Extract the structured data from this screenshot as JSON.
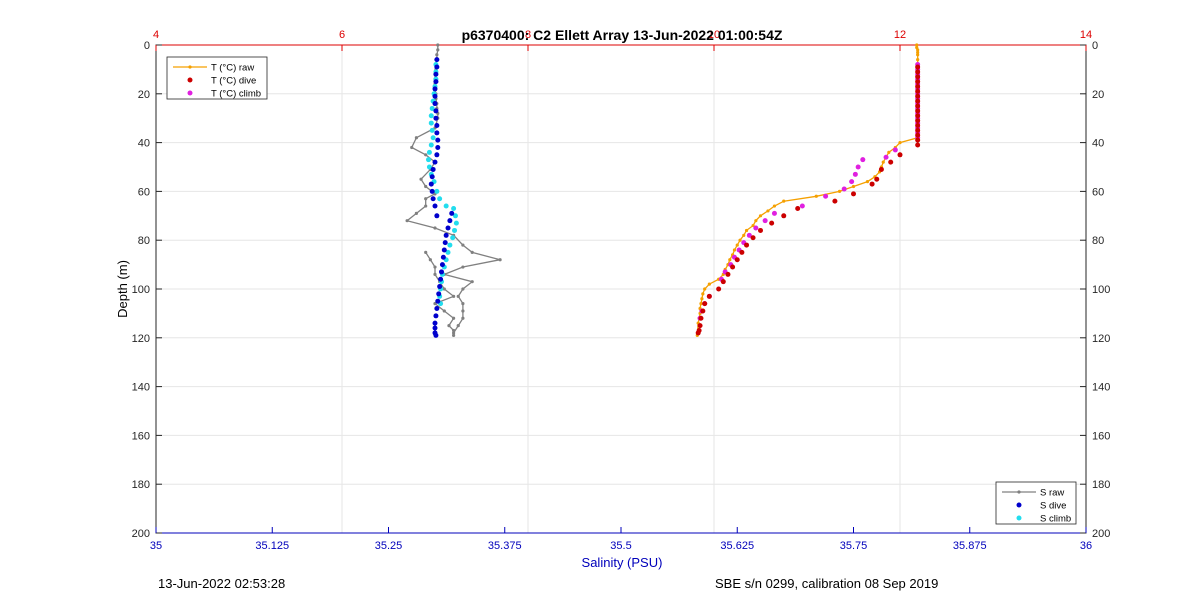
{
  "chart_data": {
    "type": "line",
    "title": "p6370400: C2 Ellett Array 13-Jun-2022 01:00:54Z",
    "ylabel": "Depth (m)",
    "xlabel_bottom": "Salinity (PSU)",
    "xlim_bottom": [
      35,
      36
    ],
    "xticks_bottom": [
      "35",
      "35.125",
      "35.25",
      "35.375",
      "35.5",
      "35.625",
      "35.75",
      "35.875",
      "36"
    ],
    "xlim_top": [
      4,
      14
    ],
    "xticks_top": [
      "4",
      "6",
      "8",
      "10",
      "12",
      "14"
    ],
    "ylim": [
      0,
      200
    ],
    "yticks": [
      "0",
      "20",
      "40",
      "60",
      "80",
      "100",
      "120",
      "140",
      "160",
      "180",
      "200"
    ],
    "y_reversed": true,
    "grid": true,
    "legends": [
      {
        "placement": "top-left",
        "entries": [
          "T (°C) raw",
          "T (°C) dive",
          "T (°C) climb"
        ]
      },
      {
        "placement": "bottom-right",
        "entries": [
          "S raw",
          "S dive",
          "S climb"
        ]
      }
    ],
    "colors": {
      "t_raw": "#f5a000",
      "t_dive": "#cc0000",
      "t_climb": "#e020e0",
      "s_raw": "#808080",
      "s_dive": "#0000cc",
      "s_climb": "#22ddee",
      "top_axis": "#dd0000",
      "bottom_axis": "#0000bb"
    },
    "series": [
      {
        "name": "T (°C) raw",
        "axis": "top",
        "style": "line-marker",
        "x": [
          12.18,
          12.18,
          12.19,
          12.19,
          12.19,
          12.19,
          12.19,
          12.19,
          12.19,
          12.19,
          12.19,
          12.19,
          12.19,
          12.19,
          12.19,
          12.19,
          12.19,
          12.19,
          12.19,
          12.19,
          12.19,
          12.19,
          12.0,
          11.95,
          11.88,
          11.85,
          11.82,
          11.8,
          11.78,
          11.73,
          11.65,
          11.5,
          11.35,
          11.1,
          10.75,
          10.65,
          10.58,
          10.5,
          10.45,
          10.42,
          10.35,
          10.32,
          10.28,
          10.25,
          10.22,
          10.2,
          10.17,
          10.15,
          10.12,
          10.1,
          10.05,
          9.95,
          9.9,
          9.88,
          9.87,
          9.86,
          9.85,
          9.85,
          9.84,
          9.83,
          9.82
        ],
        "y": [
          0,
          1,
          2,
          3,
          4,
          6,
          8,
          10,
          12,
          14,
          16,
          18,
          20,
          22,
          24,
          26,
          28,
          30,
          32,
          34,
          36,
          38,
          40,
          42,
          44,
          46,
          48,
          50,
          52,
          54,
          56,
          58,
          60,
          62,
          64,
          66,
          68,
          70,
          72,
          74,
          76,
          78,
          80,
          82,
          84,
          86,
          88,
          90,
          92,
          94,
          96,
          98,
          100,
          102,
          104,
          106,
          108,
          110,
          112,
          114,
          119
        ]
      },
      {
        "name": "T (°C) dive",
        "axis": "top",
        "style": "marker",
        "x": [
          12.19,
          12.19,
          12.19,
          12.19,
          12.19,
          12.19,
          12.19,
          12.19,
          12.19,
          12.19,
          12.19,
          12.19,
          12.19,
          12.19,
          12.19,
          12.19,
          12.19,
          12.0,
          11.9,
          11.8,
          11.75,
          11.7,
          11.5,
          11.3,
          10.9,
          10.75,
          10.62,
          10.5,
          10.42,
          10.35,
          10.3,
          10.25,
          10.2,
          10.15,
          10.1,
          10.05,
          9.95,
          9.9,
          9.88,
          9.86,
          9.85,
          9.84,
          9.83
        ],
        "y": [
          9,
          11,
          13,
          15,
          17,
          19,
          21,
          23,
          25,
          27,
          29,
          31,
          33,
          35,
          37,
          39,
          41,
          45,
          48,
          51,
          55,
          57,
          61,
          64,
          67,
          70,
          73,
          76,
          79,
          82,
          85,
          88,
          91,
          94,
          97,
          100,
          103,
          106,
          109,
          112,
          115,
          117,
          118
        ]
      },
      {
        "name": "T (°C) climb",
        "axis": "top",
        "style": "marker",
        "x": [
          12.19,
          12.19,
          12.19,
          12.19,
          12.19,
          12.19,
          12.19,
          12.19,
          12.19,
          12.19,
          12.19,
          12.19,
          12.19,
          12.19,
          12.19,
          12.19,
          11.95,
          11.85,
          11.6,
          11.55,
          11.52,
          11.48,
          11.4,
          11.2,
          10.95,
          10.65,
          10.55,
          10.45,
          10.38,
          10.32,
          10.27,
          10.22,
          10.18,
          10.12,
          10.08,
          9.95,
          9.9,
          9.87,
          9.85
        ],
        "y": [
          8,
          10,
          12,
          14,
          16,
          18,
          20,
          22,
          24,
          26,
          28,
          30,
          32,
          34,
          36,
          38,
          43,
          46,
          47,
          50,
          53,
          56,
          59,
          62,
          66,
          69,
          72,
          75,
          78,
          81,
          84,
          87,
          90,
          93,
          96,
          103,
          106,
          109,
          112
        ]
      },
      {
        "name": "S raw",
        "axis": "bottom",
        "style": "line-marker",
        "x": [
          35.303,
          35.303,
          35.302,
          35.302,
          35.301,
          35.301,
          35.3,
          35.3,
          35.3,
          35.3,
          35.301,
          35.301,
          35.302,
          35.302,
          35.303,
          35.303,
          35.3,
          35.28,
          35.275,
          35.29,
          35.3,
          35.295,
          35.285,
          35.29,
          35.3,
          35.29,
          35.29,
          35.28,
          35.27,
          35.3,
          35.32,
          35.33,
          35.34,
          35.37,
          35.33,
          35.31,
          35.34,
          35.33,
          35.325,
          35.33,
          35.33,
          35.33,
          35.325,
          35.32,
          35.32,
          35.32,
          35.315,
          35.32,
          35.31,
          35.3,
          35.32,
          35.31,
          35.305,
          35.3,
          35.3,
          35.295,
          35.29
        ],
        "y": [
          0,
          2,
          4,
          6,
          8,
          10,
          12,
          14,
          16,
          18,
          20,
          22,
          24,
          26,
          28,
          30,
          34,
          38,
          42,
          45,
          48,
          51,
          55,
          58,
          61,
          63,
          66,
          69,
          72,
          75,
          78,
          82,
          85,
          88,
          91,
          94,
          97,
          100,
          103,
          106,
          109,
          112,
          115,
          118,
          119,
          117,
          115,
          112,
          109,
          106,
          103,
          100,
          97,
          94,
          91,
          88,
          85
        ]
      },
      {
        "name": "S dive",
        "axis": "bottom",
        "style": "marker",
        "x": [
          35.302,
          35.302,
          35.301,
          35.301,
          35.3,
          35.3,
          35.3,
          35.301,
          35.301,
          35.302,
          35.302,
          35.303,
          35.303,
          35.302,
          35.3,
          35.298,
          35.297,
          35.296,
          35.297,
          35.298,
          35.3,
          35.302,
          35.318,
          35.316,
          35.314,
          35.312,
          35.311,
          35.31,
          35.309,
          35.308,
          35.307,
          35.306,
          35.305,
          35.304,
          35.303,
          35.302,
          35.301,
          35.3,
          35.3,
          35.3,
          35.301
        ],
        "y": [
          6,
          9,
          12,
          15,
          18,
          21,
          24,
          27,
          30,
          33,
          36,
          39,
          42,
          45,
          48,
          51,
          54,
          57,
          60,
          63,
          66,
          70,
          69,
          72,
          75,
          78,
          81,
          84,
          87,
          90,
          93,
          96,
          99,
          102,
          105,
          108,
          111,
          114,
          116,
          118,
          119
        ]
      },
      {
        "name": "S climb",
        "axis": "bottom",
        "style": "marker",
        "x": [
          35.301,
          35.301,
          35.301,
          35.3,
          35.299,
          35.298,
          35.297,
          35.296,
          35.296,
          35.297,
          35.298,
          35.296,
          35.294,
          35.293,
          35.294,
          35.296,
          35.299,
          35.302,
          35.305,
          35.312,
          35.32,
          35.322,
          35.323,
          35.321,
          35.319,
          35.316,
          35.314,
          35.312,
          35.31,
          35.308,
          35.307,
          35.306,
          35.305,
          35.306
        ],
        "y": [
          8,
          11,
          14,
          17,
          20,
          23,
          26,
          29,
          32,
          35,
          38,
          41,
          44,
          47,
          50,
          53,
          56,
          60,
          63,
          66,
          67,
          70,
          73,
          76,
          79,
          82,
          85,
          88,
          91,
          94,
          97,
          100,
          103,
          106
        ]
      }
    ]
  },
  "footer": {
    "left": "13-Jun-2022 02:53:28",
    "right": "SBE s/n 0299, calibration 08 Sep 2019"
  }
}
